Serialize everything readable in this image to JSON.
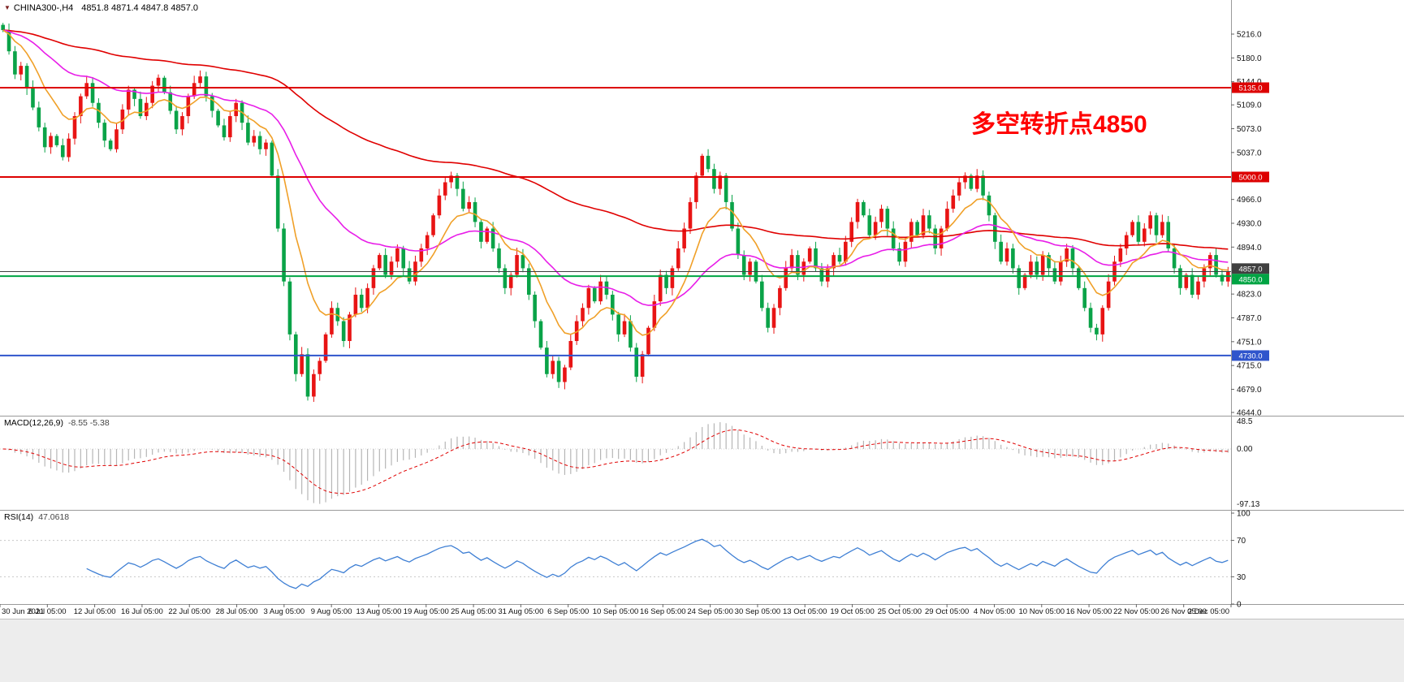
{
  "header": {
    "symbol_icon": "▼",
    "symbol": "CHINA300-,H4",
    "ohlc": "4851.8 4871.4 4847.8 4857.0"
  },
  "annotation": {
    "text": "多空转折点4850",
    "color": "#ff0000"
  },
  "indicators": [
    {
      "name": "MACD(12,26,9)",
      "values": "-8.55 -5.38"
    },
    {
      "name": "RSI(14)",
      "values": "47.0618"
    }
  ],
  "chart_data": {
    "type": "candlestick",
    "symbol": "CHINA300-",
    "timeframe": "H4",
    "ohlc_display": {
      "open": 4851.8,
      "high": 4871.4,
      "low": 4847.8,
      "close": 4857.0
    },
    "y_axis": {
      "ticks": [
        5216.0,
        5180.0,
        5144.0,
        5109.0,
        5073.0,
        5037.0,
        4966.0,
        4930.0,
        4894.0,
        4823.0,
        4787.0,
        4751.0,
        4715.0,
        4679.0,
        4644.0
      ],
      "range": [
        4644.0,
        5216.0
      ]
    },
    "x_axis": {
      "labels": [
        "30 Jun 2021",
        "6 Jul 05:00",
        "12 Jul 05:00",
        "16 Jul 05:00",
        "22 Jul 05:00",
        "28 Jul 05:00",
        "3 Aug 05:00",
        "9 Aug 05:00",
        "13 Aug 05:00",
        "19 Aug 05:00",
        "25 Aug 05:00",
        "31 Aug 05:00",
        "6 Sep 05:00",
        "10 Sep 05:00",
        "16 Sep 05:00",
        "24 Sep 05:00",
        "30 Sep 05:00",
        "13 Oct 05:00",
        "19 Oct 05:00",
        "25 Oct 05:00",
        "29 Oct 05:00",
        "4 Nov 05:00",
        "10 Nov 05:00",
        "16 Nov 05:00",
        "22 Nov 05:00",
        "26 Nov 05:00",
        "2 Dec 05:00"
      ]
    },
    "closes": [
      5222,
      5190,
      5155,
      5168,
      5135,
      5105,
      5075,
      5045,
      5062,
      5048,
      5030,
      5058,
      5092,
      5122,
      5142,
      5112,
      5082,
      5055,
      5042,
      5072,
      5102,
      5132,
      5118,
      5092,
      5112,
      5138,
      5150,
      5128,
      5100,
      5072,
      5092,
      5122,
      5142,
      5152,
      5122,
      5100,
      5078,
      5060,
      5092,
      5112,
      5082,
      5052,
      5062,
      5042,
      5052,
      5002,
      4922,
      4842,
      4762,
      4702,
      4732,
      4668,
      4702,
      4722,
      4762,
      4802,
      4782,
      4752,
      4792,
      4822,
      4802,
      4832,
      4862,
      4882,
      4852,
      4872,
      4892,
      4862,
      4842,
      4872,
      4892,
      4912,
      4942,
      4972,
      4992,
      5002,
      4982,
      4952,
      4962,
      4932,
      4902,
      4922,
      4892,
      4862,
      4832,
      4852,
      4882,
      4862,
      4822,
      4782,
      4742,
      4702,
      4722,
      4690,
      4712,
      4752,
      4782,
      4802,
      4832,
      4812,
      4842,
      4822,
      4792,
      4762,
      4782,
      4742,
      4698,
      4732,
      4772,
      4812,
      4852,
      4832,
      4862,
      4892,
      4922,
      4962,
      5002,
      5032,
      5012,
      4982,
      5002,
      4962,
      4922,
      4882,
      4852,
      4872,
      4842,
      4802,
      4772,
      4802,
      4832,
      4862,
      4882,
      4852,
      4872,
      4892,
      4862,
      4842,
      4862,
      4882,
      4872,
      4902,
      4932,
      4962,
      4942,
      4912,
      4932,
      4952,
      4922,
      4892,
      4872,
      4902,
      4932,
      4912,
      4942,
      4922,
      4892,
      4922,
      4952,
      4972,
      4992,
      5002,
      4982,
      5002,
      4972,
      4942,
      4902,
      4872,
      4892,
      4862,
      4832,
      4852,
      4872,
      4852,
      4882,
      4862,
      4842,
      4872,
      4892,
      4862,
      4832,
      4802,
      4772,
      4762,
      4802,
      4842,
      4872,
      4892,
      4912,
      4932,
      4902,
      4922,
      4942,
      4912,
      4932,
      4892,
      4862,
      4832,
      4852,
      4822,
      4842,
      4862,
      4882,
      4852,
      4842,
      4857
    ],
    "horizontal_lines": [
      {
        "price": 5135.0,
        "label": "5135.0",
        "color": "#dd0000",
        "width": 2
      },
      {
        "price": 5000.0,
        "label": "5000.0",
        "color": "#dd0000",
        "width": 2
      },
      {
        "price": 4857.0,
        "label": "4857.0",
        "color": "#404040",
        "width": 1
      },
      {
        "price": 4850.0,
        "label": "4850.0",
        "color": "#00a443",
        "width": 2
      },
      {
        "price": 4730.0,
        "label": "4730.0",
        "color": "#2f55cc",
        "width": 2
      }
    ],
    "moving_averages": [
      {
        "name": "slow-ma",
        "color": "#e00000"
      },
      {
        "name": "mid-ma",
        "color": "#e81ee8"
      },
      {
        "name": "fast-ma",
        "color": "#f0a028"
      }
    ],
    "colors": {
      "up": "#e81414",
      "down": "#0aa348",
      "macd_hist": "#b6b6b6",
      "macd_signal": "#e00000",
      "rsi": "#3e7fd4",
      "background": "#ffffff",
      "axis_text": "#111111"
    },
    "macd_panel": {
      "max_label": "48.5",
      "zero_label": "0.00",
      "min_label": "-97.13"
    },
    "rsi_panel": {
      "ticks": [
        100,
        70,
        30,
        0
      ],
      "levels": [
        70,
        30
      ]
    }
  }
}
